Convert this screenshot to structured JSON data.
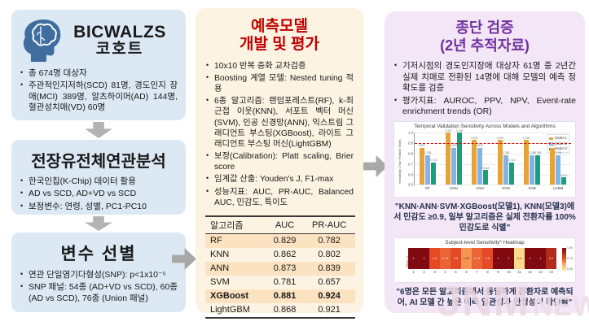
{
  "left_column": {
    "cohort_box": {
      "title_line1": "BICWALZS",
      "title_line2": "코호트",
      "bullets": [
        "총 674명 대상자",
        "주관적인지저하(SCD) 81명, 경도인지 장애(MCI) 389명, 알츠하이머(AD) 144명, 혈관성치매(VD) 60명"
      ]
    },
    "gwas_box": {
      "title": "전장유전체연관분석",
      "bullets": [
        "한국인칩(K-Chip) 데이터 활용",
        "AD vs SCD, AD+VD vs SCD",
        "보정변수: 연령, 성별, PC1-PC10"
      ]
    },
    "selection_box": {
      "title": "변수 선별",
      "bullets": [
        "연관 단일염기다형성(SNP): p<1x10⁻⁵",
        "SNP 패널: 54종 (AD+VD vs SCD), 60종 (AD vs SCD), 76종 (Union 패널)"
      ]
    }
  },
  "middle_column": {
    "title_line1": "예측모델",
    "title_line2": "개발 및 평가",
    "bullets": [
      "10x10 반복 층화 교차검증",
      "Boosting 계열 모델: Nested tuning 적용",
      "6종 알고리즘: 랜덤포레스트(RF), k-최근접 이웃(KNN), 서포트 벡터 머신(SVM), 인공 신경망(ANN), 익스트림 그래디언트 부스팅(XGBoost), 라이트 그래디언트 부스팅 머신(LightGBM)",
      "보정(Calibration): Platt scaling, Brier score",
      "임계값 산출: Youden's J, F1-max",
      "성능지표: AUC, PR-AUC, Balanced AUC, 민감도, 특이도"
    ],
    "table": {
      "headers": [
        "알고리즘",
        "AUC",
        "PR-AUC"
      ],
      "rows": [
        {
          "name": "RF",
          "auc": "0.829",
          "pr_auc": "0.782"
        },
        {
          "name": "KNN",
          "auc": "0.862",
          "pr_auc": "0.802"
        },
        {
          "name": "ANN",
          "auc": "0.873",
          "pr_auc": "0.839"
        },
        {
          "name": "SVM",
          "auc": "0.781",
          "pr_auc": "0.657"
        },
        {
          "name": "XGBoost",
          "auc": "0.881",
          "pr_auc": "0.924"
        },
        {
          "name": "LightGBM",
          "auc": "0.868",
          "pr_auc": "0.921"
        }
      ]
    }
  },
  "right_column": {
    "title_line1": "종단 검증",
    "title_line2": "(2년 추적자료)",
    "bullets": [
      "기저시점의 경도인지장애 대상자 61명 중 2년간 실제 치매로 전환된 14명에 대해 모델의 예측 정확도를 검증",
      "평가지표: AUROC, PPV, NPV, Event-rate enrichment trends (OR)"
    ],
    "quote1": "\"KNN·ANN·SVM·XGBoost(모델1), KNN(모델3)에서 민감도 ≥0.9, 일부 알고리즘은 실제 전환자를 100% 민감도로 식별\"",
    "quote2": "\"6명은 모든 알고리즘에서 동일하게 전환자로 예측되어, AI 모델 간 높은 예측 일관성과 안정성이 확인됨\""
  },
  "watermark": {
    "part1": "JNM",
    "part2": "NEWS"
  },
  "colors": {
    "box_blue": "#dce8f4",
    "box_cream": "#fdf3e2",
    "box_lavender": "#f3e6f6",
    "title_red": "#c00000",
    "title_purple": "#7030a0",
    "table_stripe": "#fbe2c0",
    "arrow_gray": "#a8a8a8",
    "brain_blue": "#3f6da0",
    "reference_line_red": "#cc1111"
  },
  "chart_data": [
    {
      "type": "bar",
      "title": "Temporal Validation Sensitivity Across Models and Algorithms",
      "ylabel": "Sensitivity (True Positive Rate)",
      "categories": [
        "RF",
        "KNN",
        "ANN",
        "SVM",
        "XGB",
        "LGBM"
      ],
      "series": [
        {
          "name": "Model 1",
          "color": "#E5A33C",
          "values": [
            0.857,
            1.0,
            0.929,
            0.929,
            0.929,
            0.857
          ]
        },
        {
          "name": "Model 2",
          "color": "#7FB5E8",
          "values": [
            0.786,
            0.857,
            0.857,
            0.786,
            0.786,
            0.786
          ]
        },
        {
          "name": "Model 3",
          "color": "#17A07C",
          "values": [
            0.714,
            1.0,
            0.643,
            0.714,
            0.786,
            0.571
          ]
        }
      ],
      "ylim": [
        0.5,
        1.0
      ],
      "yticks": [
        0.5,
        0.6,
        0.7,
        0.8,
        0.9,
        1.0
      ],
      "reference_line": 0.9,
      "legend_position": "top-right",
      "grid": true
    },
    {
      "type": "heatmap",
      "title": "Subject-level Sensitivity* Heatmap",
      "ylabel": "Sens_0",
      "x_labels": [
        "1",
        "2",
        "3",
        "4",
        "5",
        "6",
        "7",
        "8",
        "9",
        "10",
        "11",
        "12",
        "13",
        "14"
      ],
      "values": [
        1,
        1,
        0.8,
        0.75,
        0.8,
        0.65,
        0.75,
        0.8,
        1,
        1,
        0.5,
        1,
        1,
        0.9
      ],
      "colorbar_ticks": [
        "1.00",
        "0.75",
        "0.50"
      ],
      "colorbar_range": [
        0.5,
        1.0
      ]
    }
  ]
}
